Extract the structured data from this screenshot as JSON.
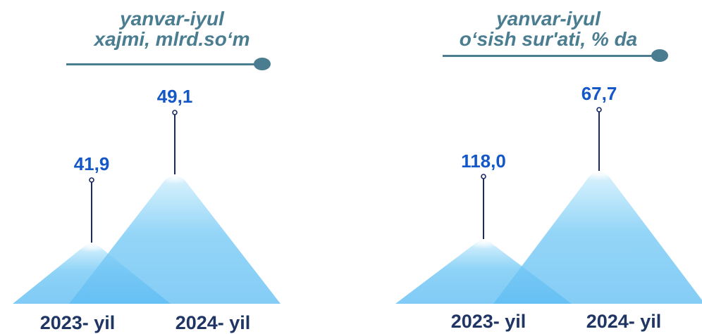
{
  "chart_data": [
    {
      "type": "bar",
      "title_line1": "yanvar-iyul",
      "title_line2": "xajmi, mlrd.so‘m",
      "categories": [
        "2023- yil",
        "2024- yil"
      ],
      "values": [
        41.9,
        49.1
      ],
      "value_labels": [
        "41,9",
        "49,1"
      ]
    },
    {
      "type": "bar",
      "title_line1": "yanvar-iyul",
      "title_line2": "o‘sish sur'ati, % da",
      "categories": [
        "2023- yil",
        "2024- yil"
      ],
      "values": [
        118.0,
        67.7
      ],
      "value_labels": [
        "118,0",
        "67,7"
      ]
    }
  ],
  "colors": {
    "title": "#4a7d90",
    "value_label": "#1457c8",
    "category_label": "#1f3563",
    "pointer_line": "#1a2a66",
    "mountain_top": "#c9ecfb",
    "mountain_bottom": "#46b0f0"
  }
}
